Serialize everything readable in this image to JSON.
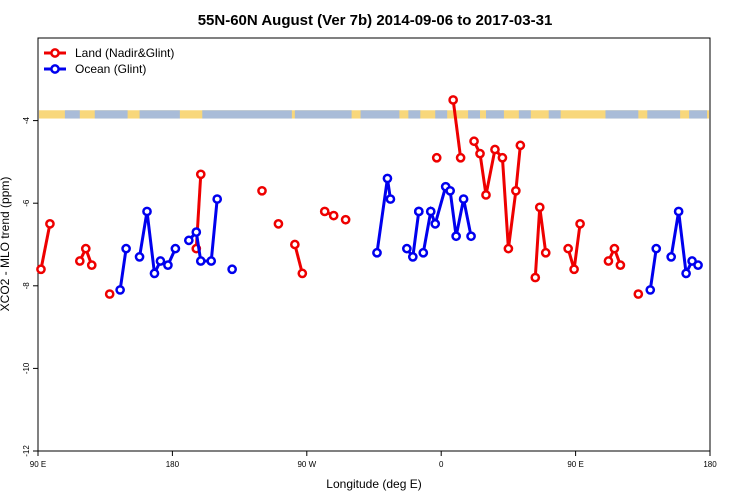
{
  "chart_data": {
    "type": "line",
    "title": "55N-60N August (Ver 7b)   2014-09-06 to 2017-03-31",
    "xlabel": "Longitude (deg E)",
    "ylabel": "XCO2 - MLO trend (ppm)",
    "xlim": [
      90,
      540
    ],
    "ylim": [
      -12,
      -2
    ],
    "x_ticks": [
      {
        "value": 90,
        "label": "90 E"
      },
      {
        "value": 180,
        "label": "180"
      },
      {
        "value": 270,
        "label": "90 W"
      },
      {
        "value": 360,
        "label": "0"
      },
      {
        "value": 450,
        "label": "90 E"
      },
      {
        "value": 540,
        "label": "180"
      }
    ],
    "y_ticks": [
      {
        "value": -4,
        "label": "-4"
      },
      {
        "value": -6,
        "label": "-6"
      },
      {
        "value": -8,
        "label": "-8"
      },
      {
        "value": -10,
        "label": "-10"
      },
      {
        "value": -12,
        "label": "-12"
      }
    ],
    "legend_position": "top-left",
    "land_ocean_strip": {
      "y_range": [
        -3.95,
        -3.75
      ],
      "land_color": "#F8D77B",
      "ocean_color": "#A9BCD8"
    },
    "series": [
      {
        "name": "Land (Nadir&Glint)",
        "color": "#EE0000",
        "segments": [
          [
            [
              92,
              -7.6
            ],
            [
              98,
              -6.5
            ]
          ],
          [
            [
              118,
              -7.4
            ],
            [
              122,
              -7.1
            ],
            [
              126,
              -7.5
            ]
          ],
          [
            [
              138,
              -8.2
            ]
          ],
          [
            [
              196,
              -7.1
            ],
            [
              199,
              -5.3
            ]
          ],
          [
            [
              240,
              -5.7
            ]
          ],
          [
            [
              251,
              -6.5
            ]
          ],
          [
            [
              262,
              -7.0
            ],
            [
              267,
              -7.7
            ]
          ],
          [
            [
              282,
              -6.2
            ],
            [
              288,
              -6.3
            ]
          ],
          [
            [
              296,
              -6.4
            ]
          ],
          [
            [
              357,
              -4.9
            ]
          ],
          [
            [
              368,
              -3.5
            ],
            [
              373,
              -4.9
            ]
          ],
          [
            [
              382,
              -4.5
            ],
            [
              386,
              -4.8
            ],
            [
              390,
              -5.8
            ],
            [
              396,
              -4.7
            ],
            [
              401,
              -4.9
            ],
            [
              405,
              -7.1
            ],
            [
              410,
              -5.7
            ],
            [
              413,
              -4.6
            ]
          ],
          [
            [
              423,
              -7.8
            ],
            [
              426,
              -6.1
            ],
            [
              430,
              -7.2
            ]
          ],
          [
            [
              445,
              -7.1
            ],
            [
              449,
              -7.6
            ],
            [
              453,
              -6.5
            ]
          ],
          [
            [
              472,
              -7.4
            ],
            [
              476,
              -7.1
            ],
            [
              480,
              -7.5
            ]
          ],
          [
            [
              492,
              -8.2
            ]
          ]
        ]
      },
      {
        "name": "Ocean (Glint)",
        "color": "#0000EE",
        "segments": [
          [
            [
              145,
              -8.1
            ],
            [
              149,
              -7.1
            ]
          ],
          [
            [
              158,
              -7.3
            ],
            [
              163,
              -6.2
            ],
            [
              168,
              -7.7
            ],
            [
              172,
              -7.4
            ],
            [
              177,
              -7.5
            ],
            [
              182,
              -7.1
            ]
          ],
          [
            [
              191,
              -6.9
            ],
            [
              196,
              -6.7
            ],
            [
              199,
              -7.4
            ],
            [
              206,
              -7.4
            ],
            [
              210,
              -5.9
            ]
          ],
          [
            [
              220,
              -7.6
            ]
          ],
          [
            [
              317,
              -7.2
            ],
            [
              324,
              -5.4
            ],
            [
              326,
              -5.9
            ]
          ],
          [
            [
              337,
              -7.1
            ],
            [
              341,
              -7.3
            ],
            [
              345,
              -6.2
            ]
          ],
          [
            [
              345,
              -6.2
            ]
          ],
          [
            [
              348,
              -7.2
            ],
            [
              353,
              -6.2
            ],
            [
              356,
              -6.5
            ],
            [
              363,
              -5.6
            ],
            [
              366,
              -5.7
            ],
            [
              370,
              -6.8
            ],
            [
              375,
              -5.9
            ],
            [
              380,
              -6.8
            ]
          ],
          [
            [
              500,
              -8.1
            ],
            [
              504,
              -7.1
            ]
          ],
          [
            [
              514,
              -7.3
            ],
            [
              519,
              -6.2
            ],
            [
              524,
              -7.7
            ],
            [
              528,
              -7.4
            ],
            [
              532,
              -7.5
            ]
          ]
        ]
      }
    ]
  }
}
